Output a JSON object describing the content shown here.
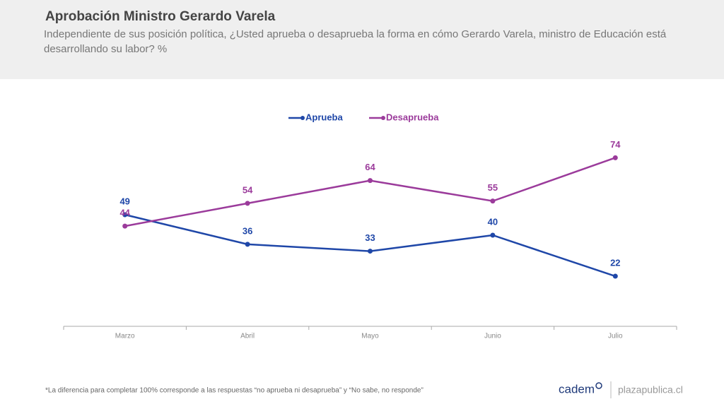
{
  "header": {
    "title": "Aprobación Ministro Gerardo Varela",
    "subtitle": "Independiente de sus posición política, ¿Usted aprueba o desaprueba la forma en cómo Gerardo Varela, ministro de Educación está desarrollando su labor? %"
  },
  "chart_data": {
    "type": "line",
    "categories": [
      "Marzo",
      "Abril",
      "Mayo",
      "Junio",
      "Julio"
    ],
    "series": [
      {
        "name": "Aprueba",
        "color": "#1f47a8",
        "values": [
          49,
          36,
          33,
          40,
          22
        ]
      },
      {
        "name": "Desaprueba",
        "color": "#9b3b9b",
        "values": [
          44,
          54,
          64,
          55,
          74
        ]
      }
    ],
    "ylim": [
      0,
      80
    ],
    "legend": "top"
  },
  "footer": {
    "note": "*La diferencia para completar 100% corresponde a las respuestas “no aprueba ni desaprueba” y “No sabe, no responde”",
    "brand": "cadem",
    "site": "plazapublica.cl"
  }
}
